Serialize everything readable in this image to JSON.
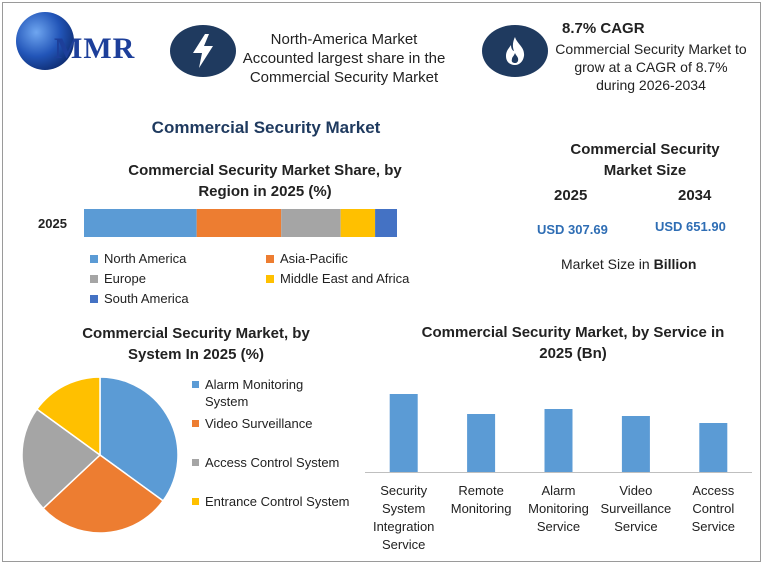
{
  "brand": {
    "logo_text": "MMR"
  },
  "header": {
    "highlight_text": "North-America Market Accounted largest share in the Commercial Security Market",
    "cagr_title": "8.7% CAGR",
    "cagr_text": "Commercial Security Market to grow at a CAGR of 8.7% during 2026-2034",
    "icons": [
      "lightning-icon",
      "flame-icon"
    ]
  },
  "main_title": "Commercial Security Market",
  "market_size": {
    "title": "Commercial Security Market Size",
    "year_a": "2025",
    "year_b": "2034",
    "value_a": "USD 307.69",
    "value_b": "USD 651.90",
    "note_prefix": "Market Size in ",
    "note_unit": "Billion"
  },
  "colors": {
    "blue": "#5b9bd5",
    "orange": "#ed7d31",
    "gray": "#a5a5a5",
    "yellow": "#ffc000",
    "dark_blue": "#4472c4",
    "navy": "#1f3a5f"
  },
  "chart_data": [
    {
      "type": "bar",
      "stacked": true,
      "orientation": "horizontal",
      "title": "Commercial Security Market Share, by Region in 2025 (%)",
      "categories": [
        "2025"
      ],
      "series": [
        {
          "name": "North America",
          "values": [
            36
          ],
          "color": "#5b9bd5"
        },
        {
          "name": "Asia-Pacific",
          "values": [
            27
          ],
          "color": "#ed7d31"
        },
        {
          "name": "Europe",
          "values": [
            19
          ],
          "color": "#a5a5a5"
        },
        {
          "name": "Middle East and Africa",
          "values": [
            11
          ],
          "color": "#ffc000"
        },
        {
          "name": "South America",
          "values": [
            7
          ],
          "color": "#4472c4"
        }
      ],
      "xlim": [
        0,
        100
      ],
      "legend": "bottom"
    },
    {
      "type": "pie",
      "title": "Commercial Security Market, by System In 2025 (%)",
      "slices": [
        {
          "name": "Alarm Monitoring System",
          "value": 35,
          "color": "#5b9bd5"
        },
        {
          "name": "Video Surveillance",
          "value": 28,
          "color": "#ed7d31"
        },
        {
          "name": "Access Control System",
          "value": 22,
          "color": "#a5a5a5"
        },
        {
          "name": "Entrance Control System",
          "value": 15,
          "color": "#ffc000"
        }
      ],
      "legend": "right"
    },
    {
      "type": "bar",
      "title": "Commercial Security Market, by Service in 2025 (Bn)",
      "categories": [
        "Security System Integration Service",
        "Remote Monitoring",
        "Alarm Monitoring Service",
        "Video Surveillance Service",
        "Access Control Service"
      ],
      "category_lines": [
        [
          "Security",
          "System",
          "Integration",
          "Service"
        ],
        [
          "Remote",
          "Monitoring"
        ],
        [
          "Alarm",
          "Monitoring",
          "Service"
        ],
        [
          "Video",
          "Surveillance",
          "Service"
        ],
        [
          "Access",
          "Control",
          "Service"
        ]
      ],
      "values": [
        78,
        58,
        63,
        56,
        49
      ],
      "ylim": [
        0,
        100
      ],
      "color": "#5b9bd5",
      "grid": false
    }
  ]
}
